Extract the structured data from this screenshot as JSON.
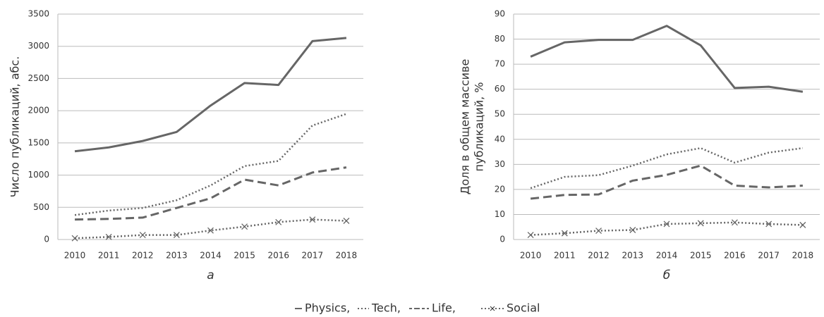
{
  "chart_data": [
    {
      "type": "line",
      "caption": "а",
      "ylabel": [
        "Число публикаций, абс."
      ],
      "categories": [
        "2010",
        "2011",
        "2012",
        "2013",
        "2014",
        "2015",
        "2016",
        "2017",
        "2018"
      ],
      "ylim": [
        0,
        3500
      ],
      "yticks": [
        0,
        500,
        1000,
        1500,
        2000,
        2500,
        3000,
        3500
      ],
      "grid": true,
      "series": [
        {
          "name": "Physics,",
          "color": "#666666",
          "style": "solid",
          "values": [
            1370,
            1430,
            1530,
            1670,
            2080,
            2430,
            2400,
            3080,
            3130
          ]
        },
        {
          "name": "Tech,",
          "color": "#666666",
          "style": "dotted",
          "values": [
            380,
            450,
            490,
            610,
            840,
            1140,
            1220,
            1770,
            1950
          ]
        },
        {
          "name": "Life,",
          "color": "#666666",
          "style": "dashed",
          "values": [
            310,
            320,
            340,
            490,
            640,
            930,
            840,
            1040,
            1120
          ]
        },
        {
          "name": "Social",
          "color": "#666666",
          "style": "dotted-x",
          "values": [
            20,
            40,
            70,
            70,
            140,
            200,
            270,
            310,
            290
          ]
        }
      ]
    },
    {
      "type": "line",
      "caption": "б",
      "ylabel": [
        "Доля в общем массиве",
        "публикаций, %"
      ],
      "categories": [
        "2010",
        "2011",
        "2012",
        "2013",
        "2014",
        "2015",
        "2016",
        "2017",
        "2018"
      ],
      "ylim": [
        0,
        90
      ],
      "yticks": [
        0,
        10,
        20,
        30,
        40,
        50,
        60,
        70,
        80,
        90
      ],
      "grid": true,
      "series": [
        {
          "name": "Physics,",
          "color": "#666666",
          "style": "solid",
          "values": [
            73,
            78.7,
            79.7,
            79.7,
            85.3,
            77.5,
            60.5,
            61,
            59
          ]
        },
        {
          "name": "Tech,",
          "color": "#666666",
          "style": "dotted",
          "values": [
            20.5,
            25,
            25.7,
            29.5,
            34,
            36.5,
            30.7,
            34.7,
            36.5
          ]
        },
        {
          "name": "Life,",
          "color": "#666666",
          "style": "dashed",
          "values": [
            16.3,
            17.8,
            18,
            23.5,
            25.8,
            29.5,
            21.5,
            20.8,
            21.5
          ]
        },
        {
          "name": "Social",
          "color": "#666666",
          "style": "dotted-x",
          "values": [
            1.8,
            2.5,
            3.5,
            3.8,
            6.2,
            6.5,
            6.8,
            6.2,
            5.8
          ]
        }
      ]
    }
  ]
}
